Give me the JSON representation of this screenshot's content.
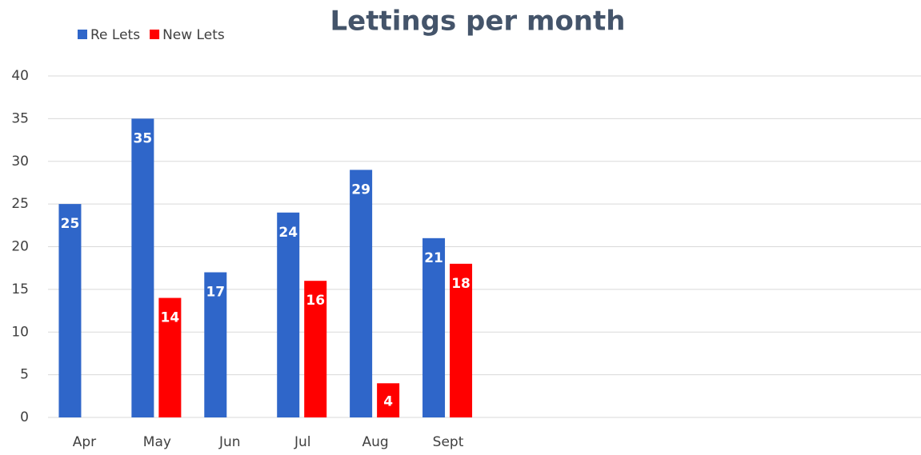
{
  "chart_data": {
    "type": "bar",
    "title": "Lettings per month",
    "categories": [
      "Apr",
      "May",
      "Jun",
      "Jul",
      "Aug",
      "Sept",
      null,
      null,
      null,
      null,
      null,
      null
    ],
    "series": [
      {
        "name": "Re Lets",
        "color": "#2f66c9",
        "values": [
          25,
          35,
          17,
          24,
          29,
          21,
          null,
          null,
          null,
          null,
          null,
          null
        ]
      },
      {
        "name": "New Lets",
        "color": "#ff0000",
        "values": [
          null,
          14,
          null,
          16,
          4,
          18,
          null,
          null,
          null,
          null,
          null,
          null
        ]
      }
    ],
    "ylim": [
      0,
      40
    ],
    "yticks": [
      0,
      5,
      10,
      15,
      20,
      25,
      30,
      35,
      40
    ],
    "grid": true,
    "legend": "top-left"
  }
}
